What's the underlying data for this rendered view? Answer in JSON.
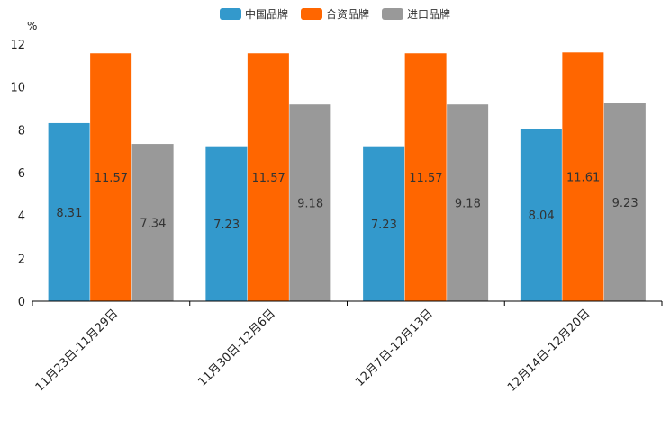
{
  "chart_data": {
    "type": "bar",
    "unit": "%",
    "categories": [
      "11月23日-11月29日",
      "11月30日-12月6日",
      "12月7日-12月13日",
      "12月14日-12月20日"
    ],
    "series": [
      {
        "name": "中国品牌",
        "color": "#3399cc",
        "values": [
          8.31,
          7.23,
          7.23,
          8.04
        ]
      },
      {
        "name": "合资品牌",
        "color": "#ff6600",
        "values": [
          11.57,
          11.57,
          11.57,
          11.61
        ]
      },
      {
        "name": "进口品牌",
        "color": "#999999",
        "values": [
          7.34,
          9.18,
          9.18,
          9.23
        ]
      }
    ],
    "ylim": [
      0,
      12
    ],
    "yticks": [
      0,
      2,
      4,
      6,
      8,
      10,
      12
    ],
    "legend_position": "top-center"
  }
}
